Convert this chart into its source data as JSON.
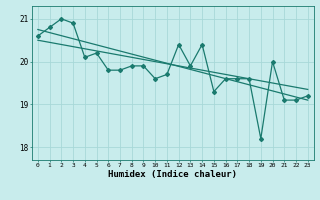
{
  "x": [
    0,
    1,
    2,
    3,
    4,
    5,
    6,
    7,
    8,
    9,
    10,
    11,
    12,
    13,
    14,
    15,
    16,
    17,
    18,
    19,
    20,
    21,
    22,
    23
  ],
  "y_data": [
    20.6,
    20.8,
    21.0,
    20.9,
    20.1,
    20.2,
    19.8,
    19.8,
    19.9,
    19.9,
    19.6,
    19.7,
    20.4,
    19.9,
    20.4,
    19.3,
    19.6,
    19.6,
    19.6,
    18.2,
    20.0,
    19.1,
    19.1,
    19.2
  ],
  "xlabel": "Humidex (Indice chaleur)",
  "line_color": "#1a7a6e",
  "bg_color": "#c8ecec",
  "grid_color": "#a8d8d8",
  "xlim": [
    -0.5,
    23.5
  ],
  "ylim": [
    17.7,
    21.3
  ],
  "yticks": [
    18,
    19,
    20,
    21
  ],
  "xticks": [
    0,
    1,
    2,
    3,
    4,
    5,
    6,
    7,
    8,
    9,
    10,
    11,
    12,
    13,
    14,
    15,
    16,
    17,
    18,
    19,
    20,
    21,
    22,
    23
  ],
  "trend1_start": 20.75,
  "trend1_end": 19.1,
  "trend2_start": 20.5,
  "trend2_end": 19.35
}
